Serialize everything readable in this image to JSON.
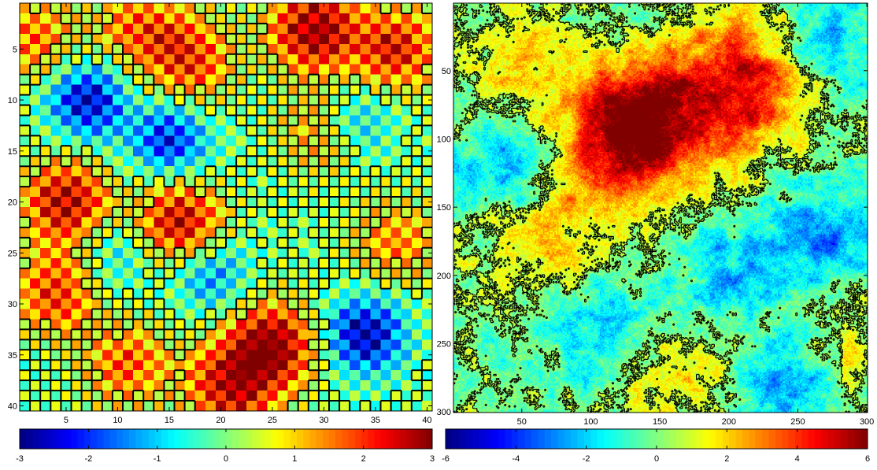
{
  "chart_data": [
    {
      "type": "heatmap",
      "colormap": "jet",
      "grid_size": [
        40,
        40
      ],
      "xlim": [
        0.5,
        40.5
      ],
      "ylim": [
        0.5,
        40.5
      ],
      "y_direction": "reverse",
      "x_ticks": [
        5,
        10,
        15,
        20,
        25,
        30,
        35,
        40
      ],
      "x_tick_labels": [
        "5",
        "10",
        "15",
        "20",
        "25",
        "30",
        "35",
        "40"
      ],
      "y_ticks": [
        5,
        10,
        15,
        20,
        25,
        30,
        35,
        40
      ],
      "y_tick_labels": [
        "5",
        "10",
        "15",
        "20",
        "25",
        "30",
        "35",
        "40"
      ],
      "contour": {
        "level": 0.5,
        "color": "#000000"
      },
      "pattern": "checkerboard",
      "value_range": [
        -3,
        3
      ],
      "hot_spots": [
        {
          "x": 29,
          "y": 3,
          "value": 3.0
        },
        {
          "x": 17,
          "y": 6,
          "value": 2.0
        },
        {
          "x": 5,
          "y": 20,
          "value": 2.7
        },
        {
          "x": 16,
          "y": 22,
          "value": 2.7
        },
        {
          "x": 25,
          "y": 34,
          "value": 3.0
        },
        {
          "x": 21,
          "y": 38,
          "value": 2.6
        },
        {
          "x": 37,
          "y": 5,
          "value": 2.3
        },
        {
          "x": 4,
          "y": 29,
          "value": 2.0
        },
        {
          "x": 2,
          "y": 4,
          "value": 1.6
        },
        {
          "x": 12,
          "y": 3,
          "value": 1.6
        },
        {
          "x": 37,
          "y": 24,
          "value": 1.5
        },
        {
          "x": 11,
          "y": 36,
          "value": 1.8
        },
        {
          "x": 30,
          "y": 13,
          "value": 1.5
        }
      ],
      "cold_spots": [
        {
          "x": 7,
          "y": 10,
          "value": -2.6
        },
        {
          "x": 15,
          "y": 14,
          "value": -2.2
        },
        {
          "x": 34,
          "y": 33,
          "value": -2.8
        },
        {
          "x": 19,
          "y": 27,
          "value": -1.5
        },
        {
          "x": 33,
          "y": 12,
          "value": -1.5
        },
        {
          "x": 10,
          "y": 25,
          "value": -1.0
        }
      ],
      "colorbar": {
        "ticks": [
          -3,
          -2,
          -1,
          0,
          1,
          2,
          3
        ],
        "tick_labels": [
          "-3",
          "-2",
          "-1",
          "0",
          "1",
          "2",
          "3"
        ],
        "range": [
          -3,
          3
        ]
      }
    },
    {
      "type": "heatmap",
      "colormap": "jet",
      "grid_size": [
        300,
        300
      ],
      "xlim": [
        0.5,
        300.5
      ],
      "ylim": [
        0.5,
        300.5
      ],
      "y_direction": "reverse",
      "x_ticks": [
        50,
        100,
        150,
        200,
        250,
        300
      ],
      "x_tick_labels": [
        "50",
        "100",
        "150",
        "200",
        "250",
        "300"
      ],
      "y_ticks": [
        50,
        100,
        150,
        200,
        250,
        300
      ],
      "y_tick_labels": [
        "50",
        "100",
        "150",
        "200",
        "250",
        "300"
      ],
      "contour": {
        "level": 0.5,
        "color": "#000000"
      },
      "pattern": "fractal",
      "value_range": [
        -6,
        6
      ],
      "hot_spots": [
        {
          "x": 150,
          "y": 90,
          "value": 4.5
        },
        {
          "x": 120,
          "y": 70,
          "value": 3.5
        },
        {
          "x": 220,
          "y": 70,
          "value": 3.5
        },
        {
          "x": 110,
          "y": 125,
          "value": 3.0
        },
        {
          "x": 60,
          "y": 40,
          "value": 2.5
        },
        {
          "x": 200,
          "y": 40,
          "value": 2.5
        },
        {
          "x": 60,
          "y": 180,
          "value": 1.5
        },
        {
          "x": 150,
          "y": 280,
          "value": 1.5
        },
        {
          "x": 210,
          "y": 250,
          "value": 1.2
        },
        {
          "x": 285,
          "y": 250,
          "value": 1.5
        }
      ],
      "cold_spots": [
        {
          "x": 240,
          "y": 270,
          "value": -3.5
        },
        {
          "x": 270,
          "y": 170,
          "value": -3.0
        },
        {
          "x": 40,
          "y": 120,
          "value": -2.5
        },
        {
          "x": 110,
          "y": 245,
          "value": -2.5
        },
        {
          "x": 270,
          "y": 30,
          "value": -2.0
        },
        {
          "x": 200,
          "y": 200,
          "value": -2.5
        },
        {
          "x": 100,
          "y": 40,
          "value": -2.0
        }
      ],
      "colorbar": {
        "ticks": [
          -6,
          -4,
          -2,
          0,
          2,
          4,
          6
        ],
        "tick_labels": [
          "-6",
          "-4",
          "-2",
          "0",
          "2",
          "4",
          "6"
        ],
        "range": [
          -6,
          6
        ]
      }
    }
  ]
}
